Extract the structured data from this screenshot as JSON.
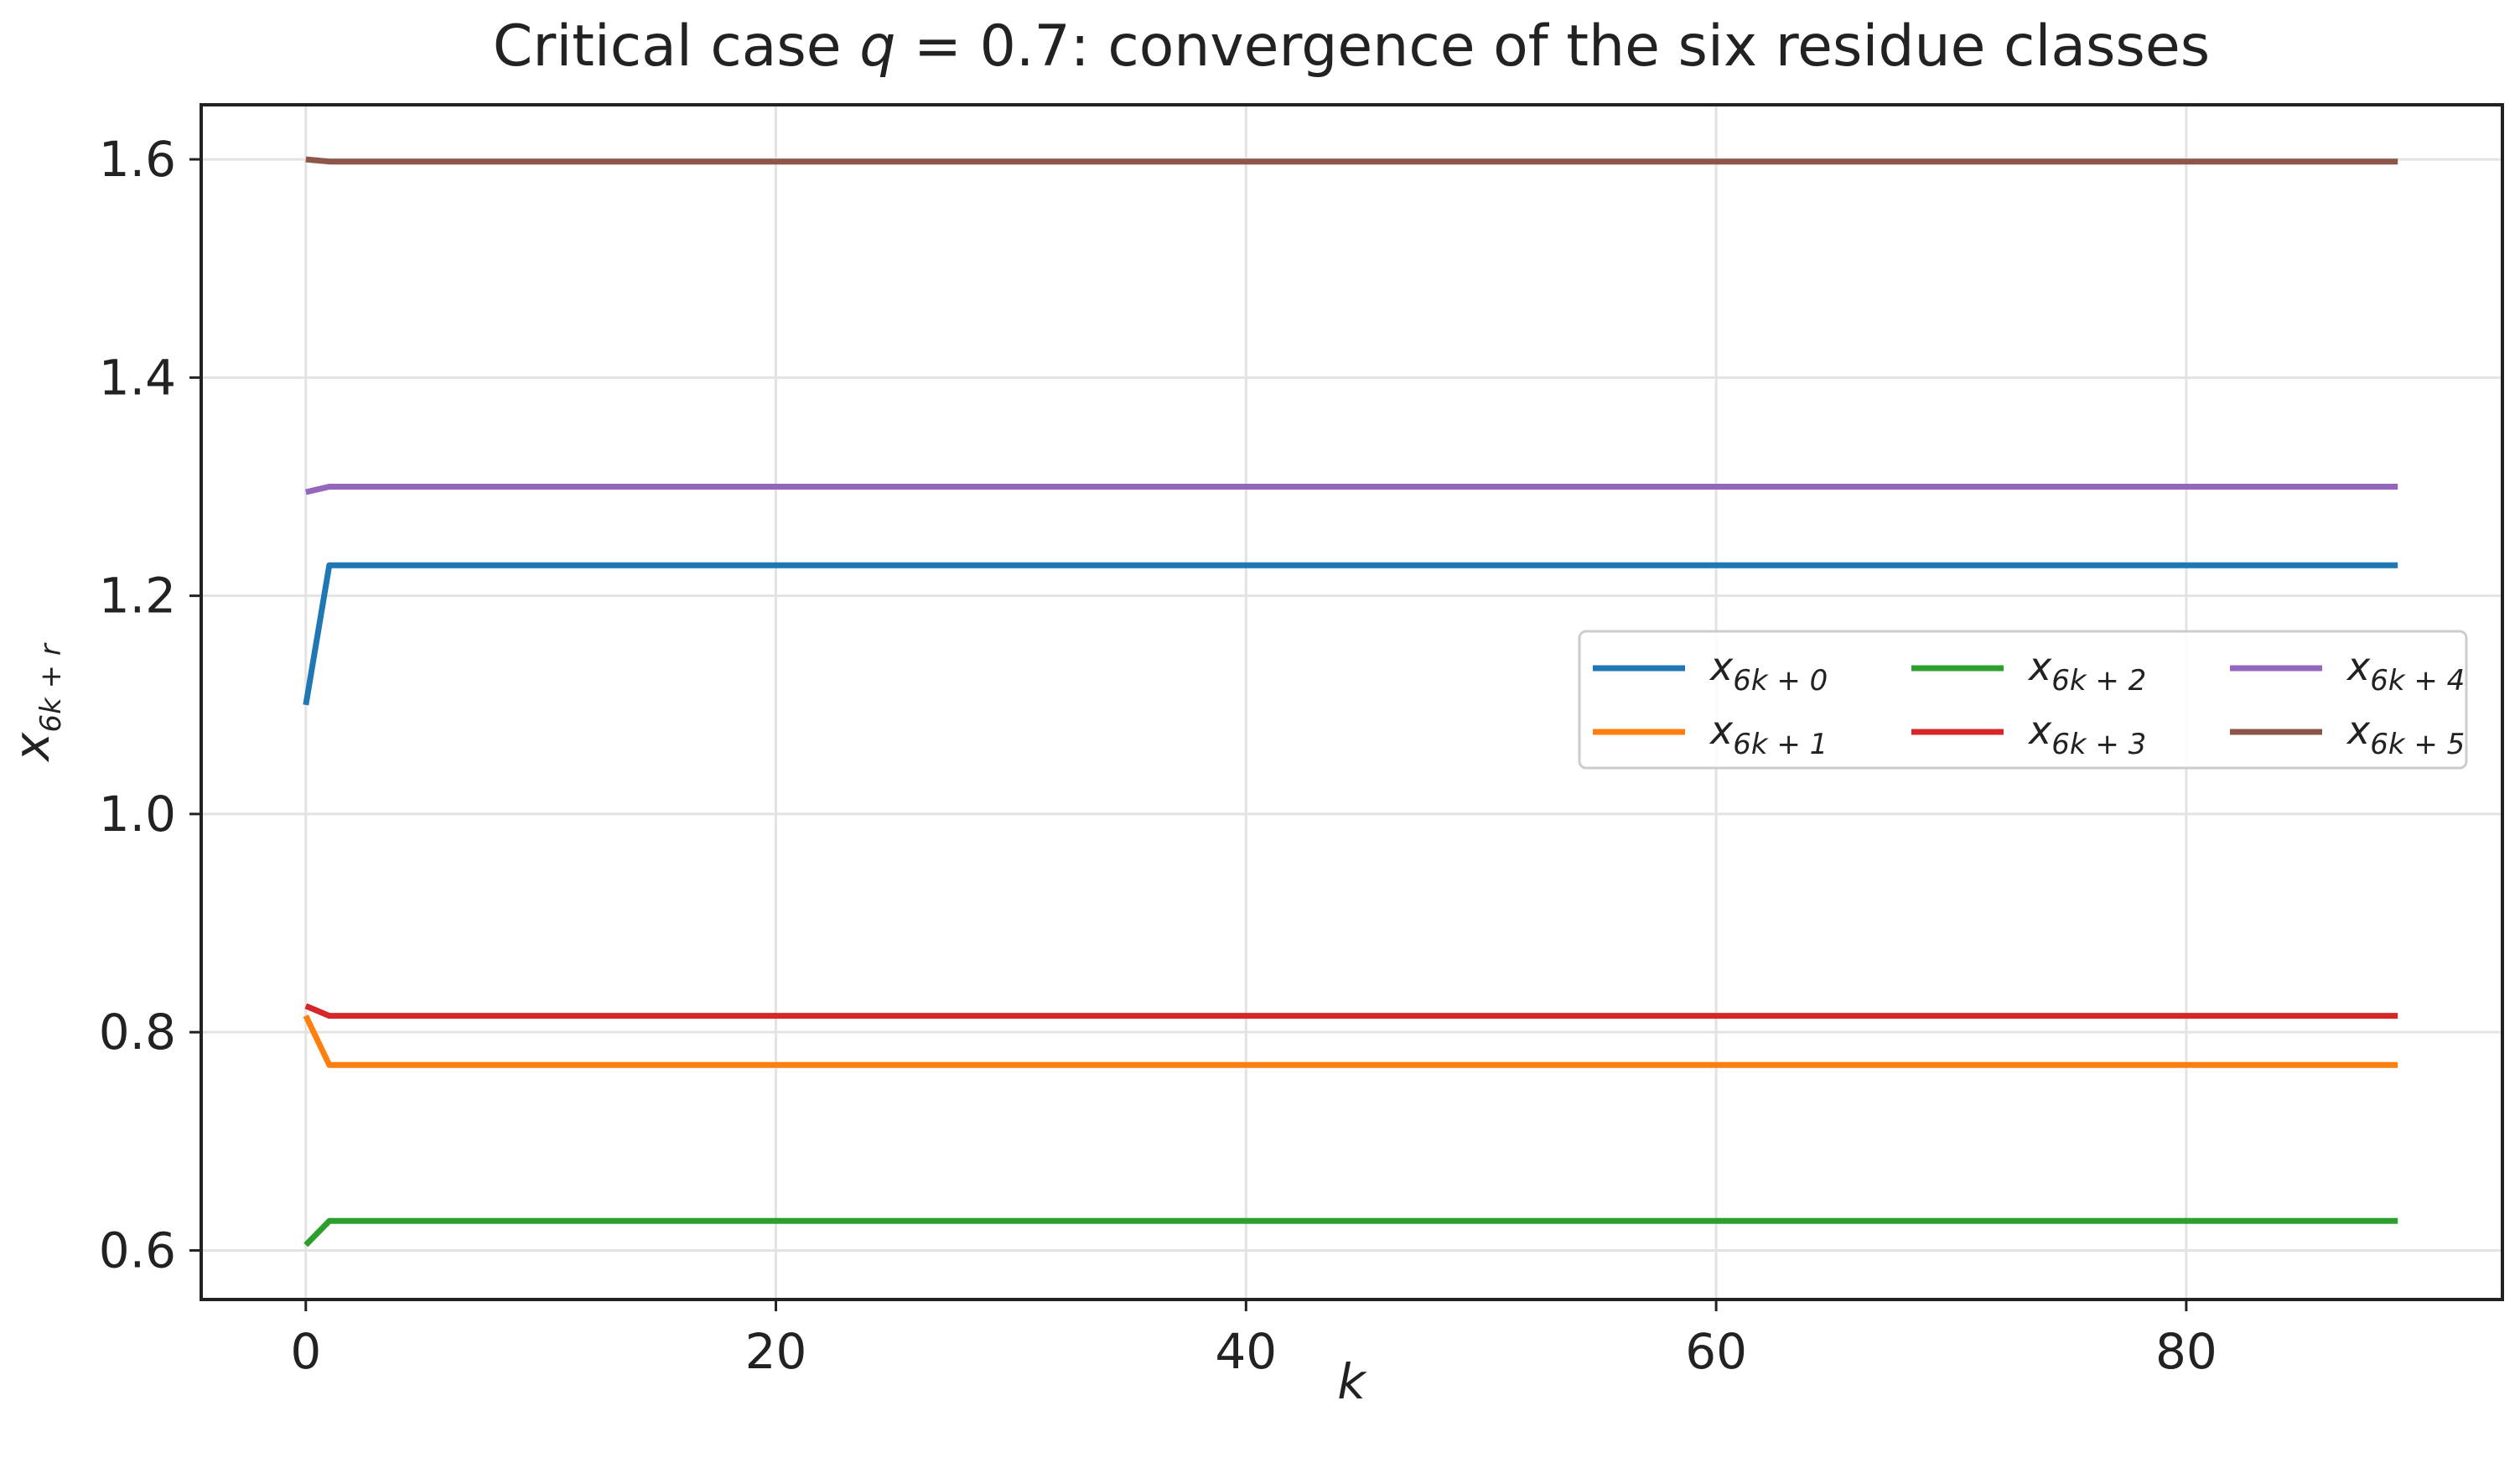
{
  "chart_data": {
    "type": "line",
    "title": {
      "prefix": "Critical case ",
      "var": "q",
      "suffix": " = 0.7: convergence of the six residue classes"
    },
    "xlabel": "k",
    "ylabel": {
      "base": "x",
      "sub": "6k + r"
    },
    "xlim": [
      -4.45,
      93.45
    ],
    "ylim": [
      0.555,
      1.65
    ],
    "xticks": [
      0,
      20,
      40,
      60,
      80
    ],
    "yticks": [
      0.6,
      0.8,
      1.0,
      1.2,
      1.4,
      1.6
    ],
    "xtick_labels": [
      "0",
      "20",
      "40",
      "60",
      "80"
    ],
    "ytick_labels": [
      "0.6",
      "0.8",
      "1.0",
      "1.2",
      "1.4",
      "1.6"
    ],
    "grid": true,
    "legend": {
      "position": "right",
      "columns": 3
    },
    "series": [
      {
        "name": {
          "base": "x",
          "sub": "6k + 0"
        },
        "color": "#1f77b4",
        "x": [
          0,
          1,
          89
        ],
        "y": [
          1.1,
          1.228,
          1.228
        ]
      },
      {
        "name": {
          "base": "x",
          "sub": "6k + 1"
        },
        "color": "#ff7f0e",
        "x": [
          0,
          1,
          89
        ],
        "y": [
          0.815,
          0.77,
          0.77
        ]
      },
      {
        "name": {
          "base": "x",
          "sub": "6k + 2"
        },
        "color": "#2ca02c",
        "x": [
          0,
          1,
          89
        ],
        "y": [
          0.605,
          0.627,
          0.627
        ]
      },
      {
        "name": {
          "base": "x",
          "sub": "6k + 3"
        },
        "color": "#d62728",
        "x": [
          0,
          1,
          89
        ],
        "y": [
          0.824,
          0.815,
          0.815
        ]
      },
      {
        "name": {
          "base": "x",
          "sub": "6k + 4"
        },
        "color": "#9467bd",
        "x": [
          0,
          1,
          89
        ],
        "y": [
          1.295,
          1.3,
          1.3
        ]
      },
      {
        "name": {
          "base": "x",
          "sub": "6k + 5"
        },
        "color": "#8c564b",
        "x": [
          0,
          1,
          89
        ],
        "y": [
          1.6,
          1.598,
          1.598
        ]
      }
    ]
  }
}
